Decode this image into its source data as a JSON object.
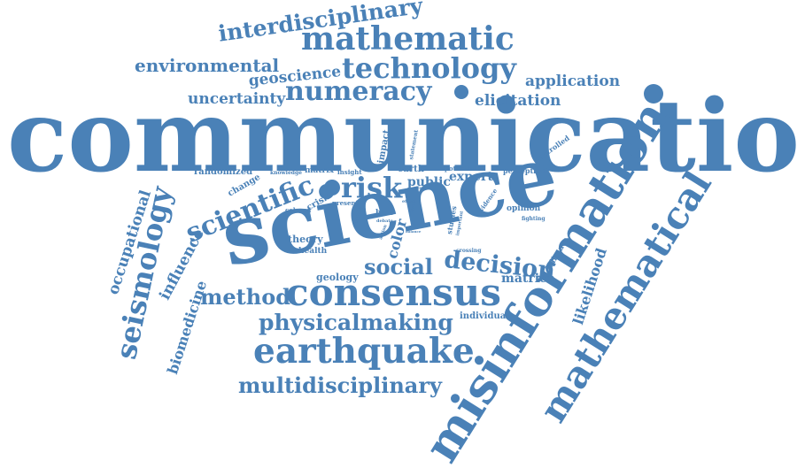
{
  "color": "#4a81b7",
  "words": [
    {
      "id": "communication",
      "text": "communication"
    },
    {
      "id": "science",
      "text": "science"
    },
    {
      "id": "misinformation",
      "text": "misinformation"
    },
    {
      "id": "mathematical",
      "text": "mathematical"
    },
    {
      "id": "consensus",
      "text": "consensus"
    },
    {
      "id": "earthquake",
      "text": "earthquake"
    },
    {
      "id": "mathematic",
      "text": "mathematic"
    },
    {
      "id": "technology",
      "text": "technology"
    },
    {
      "id": "numeracy",
      "text": "numeracy"
    },
    {
      "id": "interdisciplinary",
      "text": "interdisciplinary"
    },
    {
      "id": "environmental",
      "text": "environmental"
    },
    {
      "id": "geoscience",
      "text": "geoscience"
    },
    {
      "id": "application",
      "text": "application"
    },
    {
      "id": "uncertainty",
      "text": "uncertainty"
    },
    {
      "id": "elicitation",
      "text": "elicitation"
    },
    {
      "id": "scientific",
      "text": "scientific"
    },
    {
      "id": "risk",
      "text": "risk"
    },
    {
      "id": "seismology",
      "text": "seismology"
    },
    {
      "id": "occupational",
      "text": "occupational"
    },
    {
      "id": "influence",
      "text": "influence"
    },
    {
      "id": "biomedicine",
      "text": "biomedicine"
    },
    {
      "id": "method",
      "text": "method"
    },
    {
      "id": "physicalmaking",
      "text": "physicalmaking"
    },
    {
      "id": "multidisciplinary",
      "text": "multidisciplinary"
    },
    {
      "id": "social",
      "text": "social"
    },
    {
      "id": "decision",
      "text": "decision"
    },
    {
      "id": "likelihood",
      "text": "likelihood"
    },
    {
      "id": "color",
      "text": "color"
    },
    {
      "id": "randomized",
      "text": "randomized"
    },
    {
      "id": "knowledge",
      "text": "knowledge"
    },
    {
      "id": "matrix",
      "text": "matrix"
    },
    {
      "id": "insight",
      "text": "insight"
    },
    {
      "id": "impact",
      "text": "impact"
    },
    {
      "id": "statement",
      "text": "statement"
    },
    {
      "id": "earth",
      "text": "earth"
    },
    {
      "id": "potential",
      "text": "potential"
    },
    {
      "id": "perception",
      "text": "perception"
    },
    {
      "id": "controlled",
      "text": "controlled"
    },
    {
      "id": "change",
      "text": "change"
    },
    {
      "id": "public",
      "text": "public"
    },
    {
      "id": "expert",
      "text": "expert"
    },
    {
      "id": "evidence",
      "text": "evidence"
    },
    {
      "id": "crisis",
      "text": "crisis"
    },
    {
      "id": "present",
      "text": "present"
    },
    {
      "id": "colored",
      "text": "colored"
    },
    {
      "id": "trade",
      "text": "trade"
    },
    {
      "id": "bias",
      "text": "bias"
    },
    {
      "id": "debate",
      "text": "debate"
    },
    {
      "id": "opinion",
      "text": "opinion"
    },
    {
      "id": "fighting",
      "text": "fighting"
    },
    {
      "id": "studies",
      "text": "studies"
    },
    {
      "id": "important",
      "text": "important"
    },
    {
      "id": "climate",
      "text": "climate"
    },
    {
      "id": "theory",
      "text": "theory"
    },
    {
      "id": "health",
      "text": "health"
    },
    {
      "id": "crossing",
      "text": "crossing"
    },
    {
      "id": "geology",
      "text": "geology"
    },
    {
      "id": "matrice",
      "text": "matrice"
    },
    {
      "id": "individual",
      "text": "individual"
    },
    {
      "id": "action",
      "text": "action"
    },
    {
      "id": "effect",
      "text": "effect"
    },
    {
      "id": "affect",
      "text": "affect"
    },
    {
      "id": "fact",
      "text": "fact"
    },
    {
      "id": "balance",
      "text": "balance"
    }
  ]
}
